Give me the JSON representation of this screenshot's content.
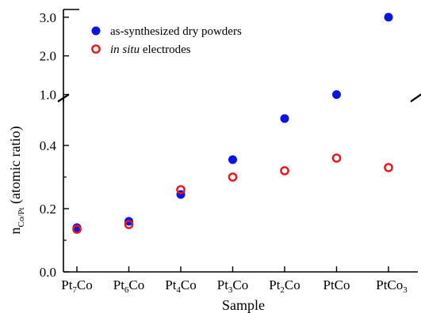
{
  "chart_data": {
    "type": "scatter",
    "xlabel": "Sample",
    "ylabel_main": "n",
    "ylabel_sub": "Co/Pt",
    "ylabel_rest": " (atomic ratio)",
    "categories": [
      {
        "base": "Pt",
        "sub": "7",
        "tail": "Co",
        "tailsub": ""
      },
      {
        "base": "Pt",
        "sub": "6",
        "tail": "Co",
        "tailsub": ""
      },
      {
        "base": "Pt",
        "sub": "4",
        "tail": "Co",
        "tailsub": ""
      },
      {
        "base": "Pt",
        "sub": "3",
        "tail": "Co",
        "tailsub": ""
      },
      {
        "base": "Pt",
        "sub": "2",
        "tail": "Co",
        "tailsub": ""
      },
      {
        "base": "Pt",
        "sub": "",
        "tail": "Co",
        "tailsub": ""
      },
      {
        "base": "Pt",
        "sub": "",
        "tail": "Co",
        "tailsub": "3"
      }
    ],
    "axis": {
      "broken": true,
      "lower_range": [
        0.0,
        0.53
      ],
      "upper_range": [
        0.93,
        3.2
      ],
      "lower_ticks": [
        "0.0",
        "0.2",
        "0.4"
      ],
      "lower_tick_values": [
        0.0,
        0.2,
        0.4
      ],
      "upper_ticks": [
        "1.0",
        "2.0",
        "3.0"
      ],
      "upper_tick_values": [
        1.0,
        2.0,
        3.0
      ]
    },
    "legend_position": "top-left",
    "series": [
      {
        "name": "as-synthesized dry powders",
        "name_italic_part": "",
        "name_rest": "as-synthesized dry powders",
        "marker": "filled-circle",
        "color": "#0a14e6",
        "values": [
          0.14,
          0.16,
          0.245,
          0.355,
          0.485,
          1.0,
          3.0
        ]
      },
      {
        "name": "in situ electrodes",
        "name_italic_part": "in situ",
        "name_rest": " electrodes",
        "marker": "open-circle",
        "color": "#e8141e",
        "values": [
          0.135,
          0.15,
          0.26,
          0.3,
          0.32,
          0.36,
          0.33
        ]
      }
    ]
  }
}
